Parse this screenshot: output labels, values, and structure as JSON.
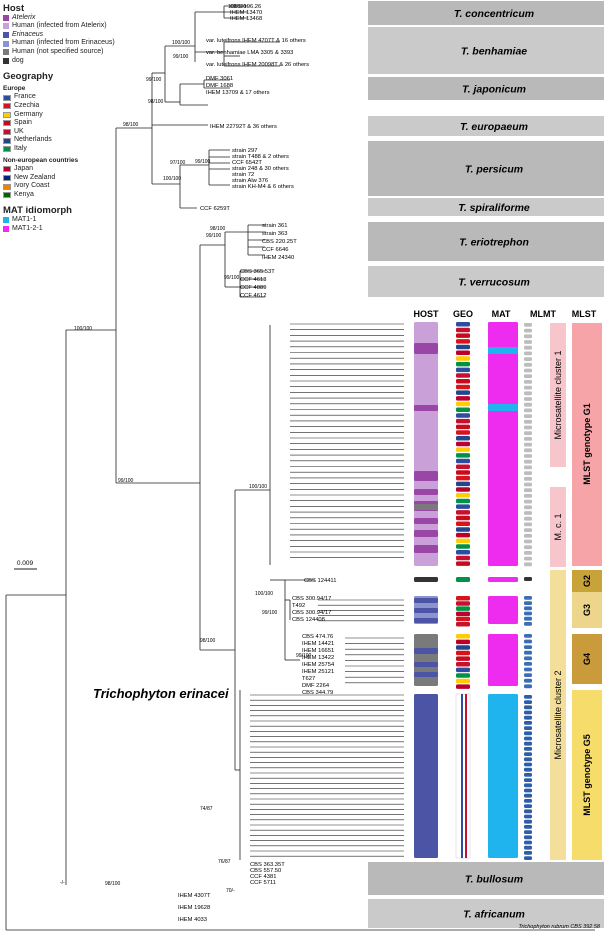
{
  "legend": {
    "host_title": "Host",
    "hosts": [
      {
        "label": "Atelerix",
        "color": "#9a46a7",
        "italic": true
      },
      {
        "label": "Human (infected from Atelerix)",
        "color": "#c9a1d8",
        "italic": false
      },
      {
        "label": "Erinaceus",
        "color": "#4c54a6",
        "italic": true
      },
      {
        "label": "Human (infected from Erinaceus)",
        "color": "#8a94cf",
        "italic": false
      },
      {
        "label": "Human (not specified source)",
        "color": "#7a7a7a",
        "italic": false
      },
      {
        "label": "dog",
        "color": "#333333",
        "italic": false
      }
    ],
    "geo_title": "Geography",
    "europe_label": "Europe",
    "europe": [
      {
        "label": "France",
        "color": "#2c4ea0"
      },
      {
        "label": "Czechia",
        "color": "#d7141a"
      },
      {
        "label": "Germany",
        "color": "#ffcc00"
      },
      {
        "label": "Spain",
        "color": "#c60b1e"
      },
      {
        "label": "UK",
        "color": "#c8102e"
      },
      {
        "label": "Netherlands",
        "color": "#21468b"
      },
      {
        "label": "Italy",
        "color": "#009246"
      }
    ],
    "noneurope_label": "Non-european countries",
    "noneurope": [
      {
        "label": "Japan",
        "color": "#bc002d"
      },
      {
        "label": "New Zealand",
        "color": "#00247d"
      },
      {
        "label": "Ivory Coast",
        "color": "#f77f00"
      },
      {
        "label": "Kenya",
        "color": "#006600"
      }
    ],
    "mat_title": "MAT idiomorph",
    "mat": [
      {
        "label": "MAT1-1",
        "color": "#1fb4ee"
      },
      {
        "label": "MAT1-2-1",
        "color": "#ee2cf0"
      }
    ]
  },
  "column_headers": [
    "HOST",
    "GEO",
    "MAT",
    "MLMT",
    "MLST"
  ],
  "species_clades": [
    {
      "label": "T. concentricum",
      "color": "#b9b9b9"
    },
    {
      "label": "T. benhamiae",
      "color": "#cacaca"
    },
    {
      "label": "T. japonicum",
      "color": "#b9b9b9"
    },
    {
      "label": "T. europaeum",
      "color": "#cacaca"
    },
    {
      "label": "T. persicum",
      "color": "#b9b9b9"
    },
    {
      "label": "T. spiraliforme",
      "color": "#cacaca"
    },
    {
      "label": "T. eriotrephon",
      "color": "#b9b9b9"
    },
    {
      "label": "T. verrucosum",
      "color": "#cacaca"
    },
    {
      "label": "T. bullosum",
      "color": "#b9b9b9"
    },
    {
      "label": "T. africanum",
      "color": "#cacaca"
    }
  ],
  "clusters": {
    "cluster1": "Microsatellite cluster 1",
    "cluster1_sub": "M. c. 1",
    "cluster2": "Microsatellite cluster 2",
    "g1": "MLST genotype G1",
    "g2": "G2",
    "g3": "G3",
    "g4": "G4",
    "g5": "MLST genotype G5"
  },
  "main_species": "Trichophyton erinacei",
  "scale_bar": "0.009",
  "outgroup": "Trichophyton rubrum CBS 392.58",
  "node_supports": [
    "100/100",
    "100/100",
    "98/100",
    "99/100",
    "99/100",
    "99/100",
    "98/100",
    "100/100",
    "100/100",
    "98/100",
    "99/100",
    "99/100",
    "100/100",
    "100/100",
    "99/100",
    "99/100",
    "74/87",
    "70/-",
    "76/87",
    "98/100",
    "97/100",
    "99/100",
    "98/100",
    "-/-"
  ],
  "tip_labels": {
    "concentricum": [
      "CBS 196.26",
      "IHEM 13470",
      "IHEM 13468"
    ],
    "benhamiae": [
      "var. luteifrons IHEM 4707T & 16 others",
      "var. benhamiae LMA 3305 & 3393",
      "var. luteifrons IHEM 20098T & 26 others"
    ],
    "japonicum": [
      "DMF 3061",
      "DMF 1688",
      "IHEM 13709 & 17 others"
    ],
    "europaeum": [
      "IHEM 22792T & 36 others"
    ],
    "persicum": [
      "strain 297",
      "strain T488 & 2 others",
      "CCF 6542T",
      "strain 248 & 30 others",
      "strain 72",
      "strain Alw 376",
      "strain KH-M4 & 6 others"
    ],
    "spiraliforme": [
      "CCF 6259T"
    ],
    "eriotrephon": [
      "strain 361",
      "strain 363",
      "CBS 220.25T",
      "CCF 6646",
      "IHEM 24340"
    ],
    "verrucosum": [
      "CBS 365.53T",
      "CCF 4613",
      "CCF 4889",
      "CCF 4612"
    ],
    "g2": [
      "CBS 124411"
    ],
    "g3": [
      "CBS 300.94/17",
      "T492",
      "CBS 300.94/17",
      "CBS 124408"
    ],
    "g4": [
      "CBS 474.76",
      "IHEM 14421",
      "IHEM 16651",
      "IHEM 13422",
      "IHEM 25754",
      "IHEM 25121",
      "T627",
      "DMF 2264",
      "CBS 344.79"
    ],
    "bullosum": [
      "CBS 363.35T",
      "CBS 557.50",
      "CCF 4381",
      "CCF 5711"
    ],
    "africanum": [
      "IHEM 4307T",
      "IHEM 19628",
      "IHEM 4033"
    ]
  }
}
